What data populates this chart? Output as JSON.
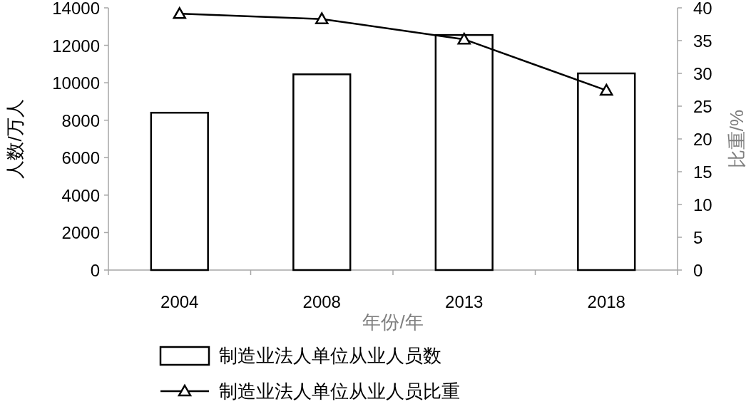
{
  "chart_data": {
    "type": "bar",
    "categories": [
      "2004",
      "2008",
      "2013",
      "2018"
    ],
    "xlabel": "年份/年",
    "ylabel": "人数/万人",
    "y2label": "比重/%",
    "ylim": [
      0,
      14000
    ],
    "yticks": [
      0,
      2000,
      4000,
      6000,
      8000,
      10000,
      12000,
      14000
    ],
    "y2lim": [
      0,
      40
    ],
    "y2ticks": [
      0,
      5,
      10,
      15,
      20,
      25,
      30,
      35,
      40
    ],
    "legend": "bottom",
    "grid": false,
    "marker": "triangle",
    "series": [
      {
        "name": "制造业法人单位从业人员数",
        "color": "#ffffff",
        "values": [
          8400,
          10450,
          12550,
          10500
        ]
      },
      {
        "name": "制造业法人单位从业人员比重",
        "type": "line",
        "axis": "y2",
        "color": "#000000",
        "values": [
          39.1,
          38.3,
          35.2,
          27.4
        ]
      }
    ]
  }
}
